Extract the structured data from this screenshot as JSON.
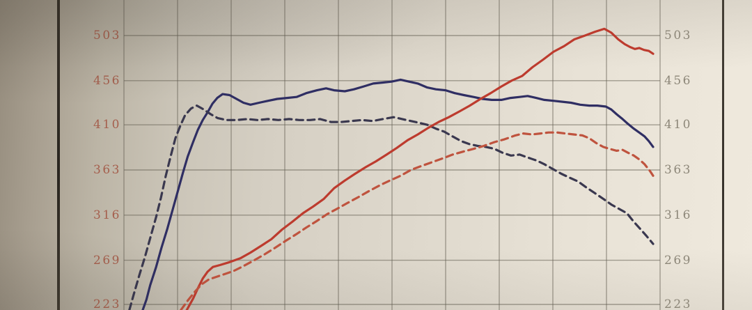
{
  "axes": {
    "left_tick_labels": [
      "503",
      "456",
      "410",
      "363",
      "316",
      "269",
      "223"
    ],
    "right_tick_labels": [
      "503",
      "456",
      "410",
      "363",
      "316",
      "269",
      "223"
    ],
    "left_label_color": "#a55f4d",
    "right_label_color": "#8d8779",
    "gridline_color": "rgba(100,94,82,0.55)"
  },
  "chart_data": {
    "type": "line",
    "title": "",
    "xlabel": "",
    "ylabel": "",
    "y_ticks": [
      503,
      456,
      410,
      363,
      316,
      269,
      223
    ],
    "ylim_visible": [
      217,
      540
    ],
    "grid": true,
    "x_gridline_count": 11,
    "x_note": "x axis labels cropped out of photo; x given as fraction 0-1 of plot width",
    "series": [
      {
        "name": "blue_solid",
        "style": "solid",
        "color": "#2f2e66",
        "points": [
          [
            0.035,
            217
          ],
          [
            0.042,
            228
          ],
          [
            0.049,
            243
          ],
          [
            0.06,
            262
          ],
          [
            0.07,
            282
          ],
          [
            0.081,
            302
          ],
          [
            0.091,
            322
          ],
          [
            0.101,
            342
          ],
          [
            0.11,
            360
          ],
          [
            0.119,
            377
          ],
          [
            0.129,
            392
          ],
          [
            0.138,
            405
          ],
          [
            0.147,
            415
          ],
          [
            0.156,
            423
          ],
          [
            0.165,
            432
          ],
          [
            0.174,
            438
          ],
          [
            0.184,
            442
          ],
          [
            0.197,
            441
          ],
          [
            0.21,
            437
          ],
          [
            0.223,
            433
          ],
          [
            0.236,
            431
          ],
          [
            0.252,
            433
          ],
          [
            0.269,
            435
          ],
          [
            0.286,
            437
          ],
          [
            0.304,
            438
          ],
          [
            0.322,
            439
          ],
          [
            0.34,
            443
          ],
          [
            0.36,
            446
          ],
          [
            0.377,
            448
          ],
          [
            0.392,
            446
          ],
          [
            0.412,
            445
          ],
          [
            0.429,
            447
          ],
          [
            0.447,
            450
          ],
          [
            0.465,
            453
          ],
          [
            0.483,
            454
          ],
          [
            0.499,
            455
          ],
          [
            0.516,
            457
          ],
          [
            0.532,
            455
          ],
          [
            0.548,
            453
          ],
          [
            0.565,
            449
          ],
          [
            0.582,
            447
          ],
          [
            0.6,
            446
          ],
          [
            0.617,
            443
          ],
          [
            0.634,
            441
          ],
          [
            0.652,
            439
          ],
          [
            0.669,
            437
          ],
          [
            0.686,
            436
          ],
          [
            0.704,
            436
          ],
          [
            0.721,
            438
          ],
          [
            0.738,
            439
          ],
          [
            0.753,
            440
          ],
          [
            0.769,
            438
          ],
          [
            0.784,
            436
          ],
          [
            0.801,
            435
          ],
          [
            0.818,
            434
          ],
          [
            0.834,
            433
          ],
          [
            0.851,
            431
          ],
          [
            0.868,
            430
          ],
          [
            0.883,
            430
          ],
          [
            0.899,
            429
          ],
          [
            0.909,
            426
          ],
          [
            0.919,
            421
          ],
          [
            0.93,
            416
          ],
          [
            0.94,
            411
          ],
          [
            0.951,
            406
          ],
          [
            0.961,
            402
          ],
          [
            0.971,
            398
          ],
          [
            0.979,
            393
          ],
          [
            0.987,
            387
          ]
        ]
      },
      {
        "name": "blue_dashed",
        "style": "dashed",
        "color": "#3a3850",
        "points": [
          [
            0.01,
            217
          ],
          [
            0.018,
            233
          ],
          [
            0.029,
            254
          ],
          [
            0.039,
            272
          ],
          [
            0.049,
            292
          ],
          [
            0.06,
            314
          ],
          [
            0.069,
            334
          ],
          [
            0.078,
            357
          ],
          [
            0.087,
            377
          ],
          [
            0.096,
            396
          ],
          [
            0.105,
            409
          ],
          [
            0.114,
            420
          ],
          [
            0.125,
            427
          ],
          [
            0.136,
            430
          ],
          [
            0.149,
            426
          ],
          [
            0.162,
            421
          ],
          [
            0.175,
            417
          ],
          [
            0.191,
            415
          ],
          [
            0.21,
            415
          ],
          [
            0.23,
            416
          ],
          [
            0.249,
            415
          ],
          [
            0.269,
            416
          ],
          [
            0.288,
            415
          ],
          [
            0.308,
            416
          ],
          [
            0.327,
            415
          ],
          [
            0.347,
            415
          ],
          [
            0.366,
            416
          ],
          [
            0.386,
            413
          ],
          [
            0.405,
            413
          ],
          [
            0.425,
            414
          ],
          [
            0.444,
            415
          ],
          [
            0.464,
            414
          ],
          [
            0.483,
            416
          ],
          [
            0.503,
            418
          ],
          [
            0.519,
            416
          ],
          [
            0.535,
            414
          ],
          [
            0.551,
            412
          ],
          [
            0.566,
            410
          ],
          [
            0.582,
            406
          ],
          [
            0.597,
            403
          ],
          [
            0.613,
            398
          ],
          [
            0.629,
            393
          ],
          [
            0.644,
            390
          ],
          [
            0.66,
            388
          ],
          [
            0.675,
            387
          ],
          [
            0.691,
            385
          ],
          [
            0.706,
            381
          ],
          [
            0.722,
            378
          ],
          [
            0.738,
            379
          ],
          [
            0.753,
            376
          ],
          [
            0.769,
            373
          ],
          [
            0.784,
            369
          ],
          [
            0.8,
            364
          ],
          [
            0.816,
            359
          ],
          [
            0.831,
            355
          ],
          [
            0.847,
            351
          ],
          [
            0.862,
            345
          ],
          [
            0.878,
            339
          ],
          [
            0.894,
            333
          ],
          [
            0.909,
            327
          ],
          [
            0.925,
            322
          ],
          [
            0.938,
            318
          ],
          [
            0.951,
            309
          ],
          [
            0.964,
            301
          ],
          [
            0.975,
            294
          ],
          [
            0.987,
            286
          ]
        ]
      },
      {
        "name": "red_solid",
        "style": "solid",
        "color": "#c23a2c",
        "points": [
          [
            0.117,
            217
          ],
          [
            0.129,
            229
          ],
          [
            0.138,
            240
          ],
          [
            0.147,
            250
          ],
          [
            0.156,
            257
          ],
          [
            0.166,
            262
          ],
          [
            0.179,
            264
          ],
          [
            0.197,
            267
          ],
          [
            0.217,
            271
          ],
          [
            0.236,
            277
          ],
          [
            0.256,
            284
          ],
          [
            0.275,
            291
          ],
          [
            0.295,
            301
          ],
          [
            0.314,
            309
          ],
          [
            0.334,
            318
          ],
          [
            0.353,
            325
          ],
          [
            0.373,
            333
          ],
          [
            0.392,
            344
          ],
          [
            0.412,
            352
          ],
          [
            0.431,
            359
          ],
          [
            0.451,
            366
          ],
          [
            0.47,
            372
          ],
          [
            0.49,
            379
          ],
          [
            0.509,
            386
          ],
          [
            0.529,
            394
          ],
          [
            0.548,
            400
          ],
          [
            0.568,
            407
          ],
          [
            0.587,
            413
          ],
          [
            0.606,
            418
          ],
          [
            0.626,
            424
          ],
          [
            0.645,
            430
          ],
          [
            0.665,
            437
          ],
          [
            0.684,
            443
          ],
          [
            0.704,
            450
          ],
          [
            0.723,
            456
          ],
          [
            0.743,
            461
          ],
          [
            0.762,
            470
          ],
          [
            0.782,
            478
          ],
          [
            0.801,
            486
          ],
          [
            0.821,
            492
          ],
          [
            0.84,
            499
          ],
          [
            0.86,
            503
          ],
          [
            0.879,
            507
          ],
          [
            0.896,
            510
          ],
          [
            0.909,
            506
          ],
          [
            0.922,
            499
          ],
          [
            0.934,
            494
          ],
          [
            0.944,
            491
          ],
          [
            0.953,
            489
          ],
          [
            0.961,
            490
          ],
          [
            0.97,
            488
          ],
          [
            0.979,
            487
          ],
          [
            0.987,
            484
          ]
        ]
      },
      {
        "name": "red_dashed",
        "style": "dashed",
        "color": "#c4523c",
        "points": [
          [
            0.106,
            217
          ],
          [
            0.119,
            227
          ],
          [
            0.132,
            236
          ],
          [
            0.145,
            244
          ],
          [
            0.158,
            249
          ],
          [
            0.174,
            252
          ],
          [
            0.19,
            255
          ],
          [
            0.205,
            258
          ],
          [
            0.223,
            263
          ],
          [
            0.243,
            269
          ],
          [
            0.262,
            275
          ],
          [
            0.282,
            282
          ],
          [
            0.301,
            289
          ],
          [
            0.321,
            296
          ],
          [
            0.34,
            303
          ],
          [
            0.36,
            310
          ],
          [
            0.379,
            317
          ],
          [
            0.399,
            323
          ],
          [
            0.418,
            329
          ],
          [
            0.438,
            335
          ],
          [
            0.457,
            341
          ],
          [
            0.477,
            347
          ],
          [
            0.496,
            352
          ],
          [
            0.516,
            357
          ],
          [
            0.535,
            363
          ],
          [
            0.554,
            367
          ],
          [
            0.574,
            371
          ],
          [
            0.594,
            375
          ],
          [
            0.613,
            379
          ],
          [
            0.632,
            382
          ],
          [
            0.652,
            385
          ],
          [
            0.671,
            388
          ],
          [
            0.691,
            392
          ],
          [
            0.71,
            395
          ],
          [
            0.73,
            399
          ],
          [
            0.745,
            401
          ],
          [
            0.761,
            400
          ],
          [
            0.777,
            401
          ],
          [
            0.792,
            402
          ],
          [
            0.808,
            402
          ],
          [
            0.823,
            401
          ],
          [
            0.839,
            400
          ],
          [
            0.855,
            399
          ],
          [
            0.868,
            396
          ],
          [
            0.881,
            391
          ],
          [
            0.894,
            387
          ],
          [
            0.906,
            385
          ],
          [
            0.919,
            383
          ],
          [
            0.93,
            384
          ],
          [
            0.94,
            381
          ],
          [
            0.951,
            378
          ],
          [
            0.961,
            374
          ],
          [
            0.971,
            369
          ],
          [
            0.981,
            362
          ],
          [
            0.987,
            357
          ]
        ]
      }
    ]
  }
}
